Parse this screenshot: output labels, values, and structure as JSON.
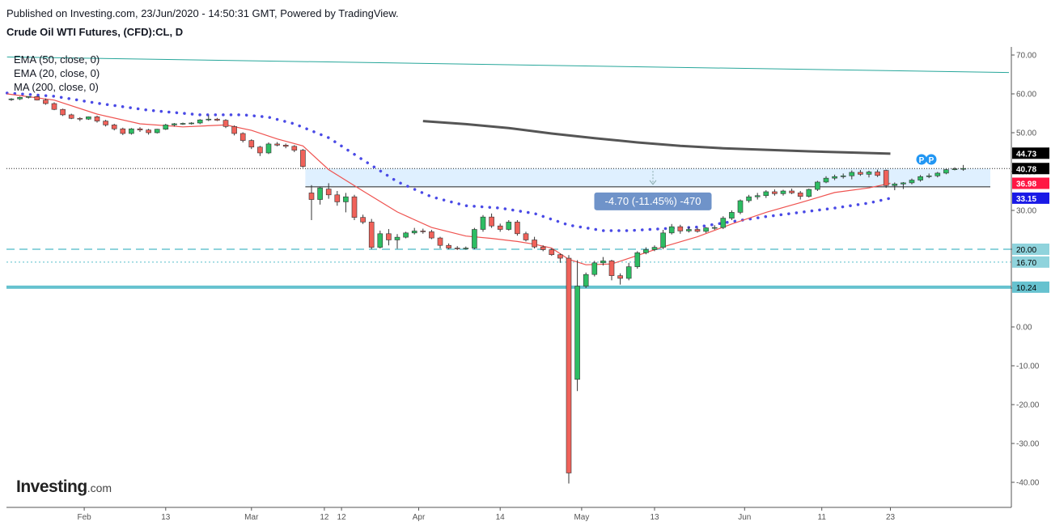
{
  "header": {
    "published": "Published on Investing.com, 23/Jun/2020 - 14:50:31 GMT, Powered by TradingView.",
    "symbol": "Crude Oil WTI Futures, (CFD):CL, D"
  },
  "legend": [
    "EMA (50, close, 0)",
    "EMA (20, close, 0)",
    "MA (200, close, 0)"
  ],
  "logo": {
    "main": "Investing",
    "domain": ".com"
  },
  "measure_label": "-4.70 (-11.45%) -470",
  "pivot_markers": [
    "P",
    "P"
  ],
  "chart_data": {
    "type": "candlestick",
    "y_ticks": [
      "70.00",
      "60.00",
      "50.00",
      "40.00",
      "30.00",
      "20.00",
      "10.00",
      "0.00",
      "-10.00",
      "-20.00",
      "-30.00",
      "-40.00"
    ],
    "y_range": [
      -45,
      75
    ],
    "x_ticks": [
      {
        "label": "Feb",
        "bar": 8.5
      },
      {
        "label": "13",
        "bar": 18
      },
      {
        "label": "Mar",
        "bar": 28
      },
      {
        "label": "12",
        "bar": 36.5
      },
      {
        "label": "12",
        "bar": 38.5
      },
      {
        "label": "Apr",
        "bar": 47.5
      },
      {
        "label": "14",
        "bar": 57
      },
      {
        "label": "May",
        "bar": 66.5
      },
      {
        "label": "13",
        "bar": 75
      },
      {
        "label": "Jun",
        "bar": 85.5
      },
      {
        "label": "11",
        "bar": 94.5
      },
      {
        "label": "23",
        "bar": 102.5
      }
    ],
    "price_labels": [
      {
        "value": 44.73,
        "text": "44.73",
        "color": "#000000"
      },
      {
        "value": 40.78,
        "text": "40.78",
        "color": "#000000"
      },
      {
        "value": 36.98,
        "text": "36.98",
        "color": "#ff1744"
      },
      {
        "value": 33.15,
        "text": "33.15",
        "color": "#1a1ae6"
      },
      {
        "value": 20.0,
        "text": "20.00",
        "color": "#8fd3dc"
      },
      {
        "value": 16.7,
        "text": "16.70",
        "color": "#8fd3dc"
      },
      {
        "value": 10.24,
        "text": "10.24",
        "color": "#66c2cf"
      }
    ],
    "horizontal_lines": [
      {
        "value": 20.0,
        "style": "dashed",
        "color": "#8fd3dc"
      },
      {
        "value": 16.7,
        "style": "dotted",
        "color": "#8fd3dc"
      },
      {
        "value": 10.24,
        "style": "solid",
        "color": "#66c2cf"
      }
    ],
    "trendline": {
      "from": [
        -0.5,
        69.5
      ],
      "to": [
        104.5,
        65.5
      ],
      "color": "#26a69a"
    },
    "measure_range": {
      "from_bar": 34,
      "to_bar": 102.5,
      "high": 40.78,
      "low": 36.08
    },
    "candles": [
      [
        58.5,
        58.9,
        58.2,
        58.7
      ],
      [
        58.7,
        59.3,
        58.4,
        59.1
      ],
      [
        59.1,
        59.4,
        58.8,
        59.3
      ],
      [
        59.3,
        59.5,
        58.3,
        58.4
      ],
      [
        58.4,
        58.8,
        57.2,
        57.5
      ],
      [
        57.5,
        57.8,
        55.8,
        56.0
      ],
      [
        56.0,
        56.2,
        54.3,
        54.6
      ],
      [
        54.6,
        54.9,
        53.5,
        53.7
      ],
      [
        53.7,
        54.0,
        53.0,
        53.5
      ],
      [
        53.5,
        54.2,
        53.3,
        54.1
      ],
      [
        54.1,
        54.4,
        52.6,
        53.0
      ],
      [
        53.0,
        53.3,
        51.6,
        52.0
      ],
      [
        52.0,
        52.3,
        50.6,
        51.0
      ],
      [
        51.0,
        51.3,
        49.4,
        49.8
      ],
      [
        49.8,
        51.2,
        49.5,
        51.0
      ],
      [
        51.0,
        51.4,
        50.2,
        50.7
      ],
      [
        50.7,
        51.0,
        49.5,
        50.0
      ],
      [
        50.0,
        51.0,
        49.8,
        50.9
      ],
      [
        50.9,
        52.3,
        50.7,
        52.0
      ],
      [
        52.0,
        52.5,
        51.6,
        52.3
      ],
      [
        52.3,
        52.6,
        52.0,
        52.4
      ],
      [
        52.4,
        52.7,
        52.1,
        52.5
      ],
      [
        52.5,
        53.5,
        52.2,
        53.3
      ],
      [
        53.3,
        54.5,
        53.0,
        53.5
      ],
      [
        53.5,
        53.8,
        53.0,
        53.2
      ],
      [
        53.2,
        53.5,
        51.2,
        51.6
      ],
      [
        51.6,
        51.9,
        49.3,
        49.8
      ],
      [
        49.8,
        50.1,
        47.5,
        48.0
      ],
      [
        48.0,
        48.3,
        45.8,
        46.3
      ],
      [
        46.3,
        46.6,
        44.0,
        44.8
      ],
      [
        44.8,
        47.5,
        44.5,
        47.1
      ],
      [
        47.1,
        47.6,
        46.5,
        46.8
      ],
      [
        46.8,
        47.2,
        46.0,
        46.5
      ],
      [
        46.5,
        46.8,
        45.0,
        45.5
      ],
      [
        45.5,
        45.8,
        41.0,
        41.3
      ],
      [
        34.5,
        36.5,
        27.5,
        32.8
      ],
      [
        32.8,
        36.0,
        31.5,
        35.8
      ],
      [
        35.5,
        37.0,
        33.0,
        34.0
      ],
      [
        34.0,
        35.0,
        31.2,
        32.2
      ],
      [
        32.2,
        34.5,
        29.5,
        33.5
      ],
      [
        33.5,
        34.0,
        27.5,
        28.2
      ],
      [
        28.2,
        28.9,
        26.5,
        27.0
      ],
      [
        27.0,
        27.8,
        20.0,
        20.5
      ],
      [
        20.5,
        24.8,
        20.2,
        24.0
      ],
      [
        24.0,
        25.2,
        21.0,
        22.4
      ],
      [
        22.4,
        23.9,
        20.1,
        23.1
      ],
      [
        23.1,
        24.5,
        22.8,
        24.2
      ],
      [
        24.2,
        25.5,
        23.8,
        24.7
      ],
      [
        24.7,
        25.3,
        24.0,
        24.5
      ],
      [
        24.5,
        25.0,
        22.6,
        22.9
      ],
      [
        22.9,
        23.2,
        20.2,
        21.0
      ],
      [
        21.0,
        21.5,
        20.0,
        20.3
      ],
      [
        20.3,
        20.8,
        19.8,
        20.2
      ],
      [
        20.2,
        20.7,
        19.9,
        20.3
      ],
      [
        20.3,
        25.5,
        20.0,
        25.1
      ],
      [
        25.1,
        28.8,
        24.5,
        28.3
      ],
      [
        28.3,
        29.2,
        25.5,
        26.0
      ],
      [
        26.0,
        26.6,
        24.5,
        25.1
      ],
      [
        25.1,
        27.5,
        24.8,
        27.0
      ],
      [
        27.0,
        27.5,
        23.5,
        24.0
      ],
      [
        24.0,
        24.5,
        22.0,
        22.4
      ],
      [
        22.4,
        23.2,
        20.2,
        20.6
      ],
      [
        20.6,
        21.0,
        19.5,
        19.9
      ],
      [
        19.9,
        20.2,
        18.3,
        18.6
      ],
      [
        18.6,
        18.9,
        16.5,
        17.7
      ],
      [
        17.7,
        18.5,
        -40.3,
        -37.6
      ],
      [
        -13.5,
        17.2,
        -16.5,
        10.5
      ],
      [
        10.5,
        14.0,
        10.0,
        13.5
      ],
      [
        13.5,
        17.0,
        13.0,
        16.5
      ],
      [
        16.5,
        18.0,
        15.8,
        17.0
      ],
      [
        17.0,
        17.3,
        12.0,
        13.2
      ],
      [
        13.2,
        13.8,
        10.9,
        12.5
      ],
      [
        12.5,
        16.5,
        12.0,
        15.5
      ],
      [
        15.5,
        19.5,
        15.0,
        19.1
      ],
      [
        19.1,
        20.5,
        18.7,
        19.9
      ],
      [
        19.9,
        21.0,
        19.5,
        20.5
      ],
      [
        20.5,
        25.0,
        20.0,
        24.2
      ],
      [
        24.2,
        26.5,
        23.8,
        25.8
      ],
      [
        25.8,
        26.3,
        24.0,
        24.7
      ],
      [
        24.7,
        25.8,
        24.3,
        25.1
      ],
      [
        25.1,
        25.5,
        24.3,
        24.6
      ],
      [
        24.6,
        25.7,
        24.2,
        25.5
      ],
      [
        25.5,
        26.2,
        25.0,
        25.6
      ],
      [
        25.6,
        28.5,
        25.2,
        28.0
      ],
      [
        28.0,
        30.0,
        27.5,
        29.5
      ],
      [
        29.5,
        32.8,
        29.0,
        32.5
      ],
      [
        32.5,
        34.0,
        32.0,
        33.5
      ],
      [
        33.5,
        34.5,
        32.8,
        33.8
      ],
      [
        33.8,
        35.2,
        33.2,
        34.8
      ],
      [
        34.8,
        35.4,
        33.8,
        34.3
      ],
      [
        34.3,
        35.3,
        33.8,
        35.0
      ],
      [
        35.0,
        35.6,
        34.2,
        34.5
      ],
      [
        34.5,
        35.0,
        32.8,
        33.6
      ],
      [
        33.6,
        35.6,
        33.3,
        35.4
      ],
      [
        35.4,
        37.6,
        35.0,
        37.3
      ],
      [
        37.3,
        38.8,
        37.0,
        38.3
      ],
      [
        38.3,
        39.2,
        37.8,
        38.7
      ],
      [
        38.7,
        39.5,
        38.2,
        38.9
      ],
      [
        38.9,
        40.3,
        38.0,
        39.8
      ],
      [
        39.8,
        40.4,
        38.9,
        39.3
      ],
      [
        39.3,
        40.2,
        38.5,
        39.9
      ],
      [
        39.9,
        40.5,
        38.6,
        39.0
      ],
      [
        40.3,
        40.5,
        35.8,
        36.4
      ],
      [
        36.4,
        37.2,
        35.2,
        36.8
      ],
      [
        36.8,
        37.3,
        35.5,
        37.1
      ],
      [
        37.1,
        38.2,
        36.7,
        37.8
      ],
      [
        37.8,
        39.1,
        37.4,
        38.7
      ],
      [
        38.7,
        39.5,
        38.3,
        38.9
      ],
      [
        38.9,
        39.9,
        38.5,
        39.6
      ],
      [
        39.6,
        40.7,
        39.3,
        40.5
      ],
      [
        40.5,
        41.1,
        40.3,
        40.7
      ],
      [
        40.7,
        41.7,
        40.2,
        40.8
      ]
    ],
    "series": [
      {
        "name": "EMA (50, close, 0)",
        "color": "#4a4ae6",
        "style": "dotted",
        "points": [
          [
            -0.5,
            60.2
          ],
          [
            5,
            59.4
          ],
          [
            10,
            57.6
          ],
          [
            16,
            55.8
          ],
          [
            22,
            54.6
          ],
          [
            27,
            54.6
          ],
          [
            30,
            54.0
          ],
          [
            33,
            52.3
          ],
          [
            37,
            48.7
          ],
          [
            41,
            43.0
          ],
          [
            45,
            37.4
          ],
          [
            49,
            33.5
          ],
          [
            53,
            31.2
          ],
          [
            57,
            30.6
          ],
          [
            61,
            29.2
          ],
          [
            65,
            26.2
          ],
          [
            69,
            24.8
          ],
          [
            72,
            24.8
          ],
          [
            76,
            25.3
          ],
          [
            80,
            25.7
          ],
          [
            84,
            27.1
          ],
          [
            88,
            28.4
          ],
          [
            92,
            29.5
          ],
          [
            96,
            30.6
          ],
          [
            100,
            31.9
          ],
          [
            102.5,
            33.15
          ]
        ]
      },
      {
        "name": "EMA (20, close, 0)",
        "color": "#ef5350",
        "style": "solid",
        "points": [
          [
            -0.5,
            60.0
          ],
          [
            5,
            58.4
          ],
          [
            10,
            54.8
          ],
          [
            15,
            52.3
          ],
          [
            20,
            51.5
          ],
          [
            25,
            52.0
          ],
          [
            28,
            50.6
          ],
          [
            31,
            48.4
          ],
          [
            34,
            46.6
          ],
          [
            37,
            40.5
          ],
          [
            41,
            35.0
          ],
          [
            45,
            29.6
          ],
          [
            49,
            25.6
          ],
          [
            53,
            23.4
          ],
          [
            56,
            22.8
          ],
          [
            59,
            22.0
          ],
          [
            61,
            21.3
          ],
          [
            63,
            20.3
          ],
          [
            65,
            17.4
          ],
          [
            67,
            16.0
          ],
          [
            70,
            16.2
          ],
          [
            73,
            18.4
          ],
          [
            76,
            20.6
          ],
          [
            80,
            23.2
          ],
          [
            84,
            26.5
          ],
          [
            88,
            29.5
          ],
          [
            92,
            32.0
          ],
          [
            96,
            34.6
          ],
          [
            100,
            35.8
          ],
          [
            102.5,
            36.98
          ]
        ]
      },
      {
        "name": "MA (200, close, 0)",
        "color": "#555555",
        "style": "solid",
        "points": [
          [
            48,
            53.0
          ],
          [
            53,
            52.2
          ],
          [
            58,
            51.2
          ],
          [
            63,
            49.8
          ],
          [
            68,
            48.6
          ],
          [
            73,
            47.5
          ],
          [
            78,
            46.6
          ],
          [
            83,
            46.0
          ],
          [
            88,
            45.6
          ],
          [
            93,
            45.2
          ],
          [
            98,
            44.9
          ],
          [
            102.5,
            44.6
          ]
        ]
      }
    ]
  }
}
